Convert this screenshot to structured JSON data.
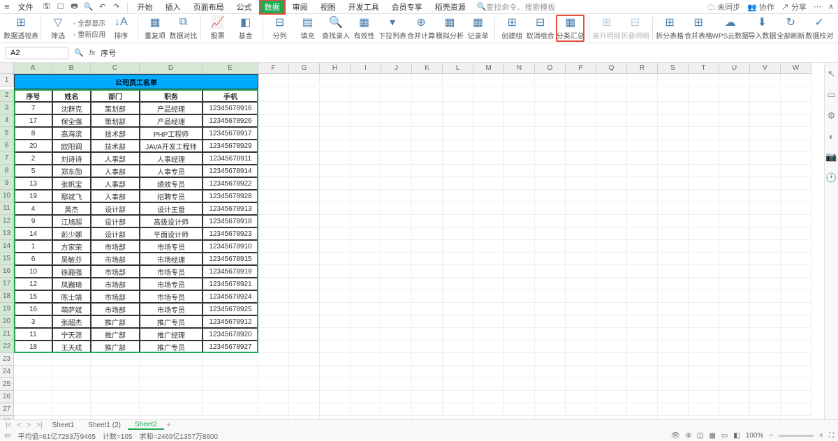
{
  "menu": {
    "file": "文件",
    "items": [
      "开始",
      "插入",
      "页面布局",
      "公式",
      "数据",
      "审阅",
      "视图",
      "开发工具",
      "会员专享",
      "稻壳资源"
    ],
    "active_index": 4,
    "search_placeholder": "查找命令、搜索模板",
    "right": [
      "未同步",
      "协作",
      "分享"
    ]
  },
  "ribbon": {
    "buttons": [
      {
        "label": "数据透视表",
        "icon": "⊞"
      },
      {
        "label": "筛选",
        "icon": "▽"
      },
      {
        "label": "排序",
        "icon": "↓A"
      },
      {
        "label": "重复项",
        "icon": "▦"
      },
      {
        "label": "数据对比",
        "icon": "⧉"
      },
      {
        "label": "股票",
        "icon": "📈"
      },
      {
        "label": "基金",
        "icon": "◧"
      },
      {
        "label": "分列",
        "icon": "⊟"
      },
      {
        "label": "填充",
        "icon": "▤"
      },
      {
        "label": "查找录入",
        "icon": "🔍"
      },
      {
        "label": "有效性",
        "icon": "▦"
      },
      {
        "label": "下拉列表",
        "icon": "▾"
      },
      {
        "label": "合并计算",
        "icon": "⊕"
      },
      {
        "label": "模拟分析",
        "icon": "▦"
      },
      {
        "label": "记录单",
        "icon": "▦"
      },
      {
        "label": "创建组",
        "icon": "⊞"
      },
      {
        "label": "取消组合",
        "icon": "⊟"
      },
      {
        "label": "分类汇总",
        "icon": "▦",
        "highlight": true
      },
      {
        "label": "展开明细",
        "icon": "⊞",
        "disabled": true
      },
      {
        "label": "折叠明细",
        "icon": "⊟",
        "disabled": true
      },
      {
        "label": "拆分表格",
        "icon": "⊞"
      },
      {
        "label": "合并表格",
        "icon": "⊞"
      },
      {
        "label": "WPS云数据",
        "icon": "☁"
      },
      {
        "label": "导入数据",
        "icon": "⬇"
      },
      {
        "label": "全部刷新",
        "icon": "↻"
      },
      {
        "label": "数据校对",
        "icon": "✓"
      }
    ],
    "small_groups": [
      [
        "全部显示",
        "重新应用"
      ]
    ]
  },
  "formula": {
    "cell": "A2",
    "value": "序号"
  },
  "sheet": {
    "title": "公司员工名单",
    "title_bg": "#00aaff",
    "columns": [
      "A",
      "B",
      "C",
      "D",
      "E",
      "F",
      "G",
      "H",
      "I",
      "J",
      "K",
      "L",
      "M",
      "N",
      "O",
      "P",
      "Q",
      "R",
      "S",
      "T",
      "U",
      "V",
      "W"
    ],
    "headers": [
      "序号",
      "姓名",
      "部门",
      "职务",
      "手机"
    ],
    "rows": [
      [
        "7",
        "沈群克",
        "策划部",
        "产品经理",
        "12345678916"
      ],
      [
        "17",
        "保全强",
        "策划部",
        "产品经理",
        "12345678926"
      ],
      [
        "8",
        "高海滨",
        "技术部",
        "PHP工程师",
        "12345678917"
      ],
      [
        "20",
        "欧阳调",
        "技术部",
        "JAVA开发工程师",
        "12345678929"
      ],
      [
        "2",
        "刘诗诗",
        "人事部",
        "人事经理",
        "12345678911"
      ],
      [
        "5",
        "郑东勋",
        "人事部",
        "人事专员",
        "12345678914"
      ],
      [
        "13",
        "张帆宝",
        "人事部",
        "绩效专员",
        "12345678922"
      ],
      [
        "19",
        "鄢斌飞",
        "人事部",
        "招聘专员",
        "12345678928"
      ],
      [
        "4",
        "黄杰",
        "设计部",
        "设计主管",
        "12345678913"
      ],
      [
        "9",
        "江旭超",
        "设计部",
        "高级设计师",
        "12345678918"
      ],
      [
        "14",
        "彭少娜",
        "设计部",
        "平面设计师",
        "12345678923"
      ],
      [
        "1",
        "方家荣",
        "市场部",
        "市场专员",
        "12345678910"
      ],
      [
        "6",
        "吴敏芬",
        "市场部",
        "市场经理",
        "12345678915"
      ],
      [
        "10",
        "徐豁强",
        "市场部",
        "市场专员",
        "12345678919"
      ],
      [
        "12",
        "凤巍琦",
        "市场部",
        "市场专员",
        "12345678921"
      ],
      [
        "15",
        "陈士靖",
        "市场部",
        "市场专员",
        "12345678924"
      ],
      [
        "16",
        "萌萨斌",
        "市场部",
        "市场专员",
        "12345678925"
      ],
      [
        "3",
        "张超杰",
        "推广部",
        "推广专员",
        "12345678912"
      ],
      [
        "11",
        "宁天涯",
        "推广部",
        "推广经理",
        "12345678920"
      ],
      [
        "18",
        "王天成",
        "推广部",
        "推广专员",
        "12345678927"
      ]
    ],
    "visible_row_numbers": 30
  },
  "tabs": {
    "items": [
      "Sheet1",
      "Sheet1 (2)",
      "Sheet2"
    ],
    "active_index": 2
  },
  "status": {
    "avg_label": "平均值=61亿7283万9465",
    "count_label": "计数=105",
    "sum_label": "求和=2469亿1357万8600",
    "zoom": "100%"
  }
}
